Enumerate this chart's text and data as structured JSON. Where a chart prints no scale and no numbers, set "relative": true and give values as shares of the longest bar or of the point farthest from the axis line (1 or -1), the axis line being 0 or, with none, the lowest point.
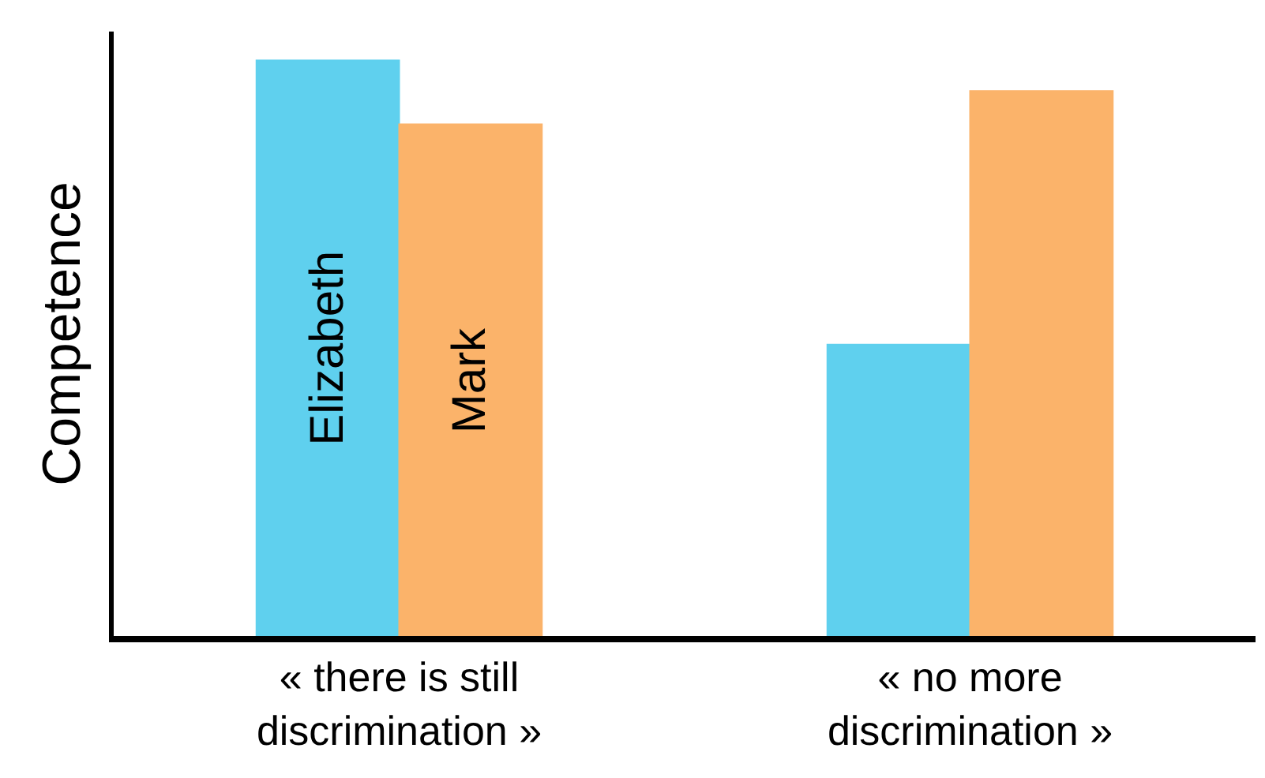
{
  "chart_data": {
    "type": "bar",
    "ylabel": "Competence",
    "relative": true,
    "categories": [
      "« there is still discrimination »",
      "« no more discrimination »"
    ],
    "series": [
      {
        "name": "Elizabeth",
        "color": "#5fd0ee",
        "values": [
          1,
          0.506
        ]
      },
      {
        "name": "Mark",
        "color": "#fbb36a",
        "values": [
          0.889,
          0.947
        ]
      }
    ],
    "legend": false
  }
}
